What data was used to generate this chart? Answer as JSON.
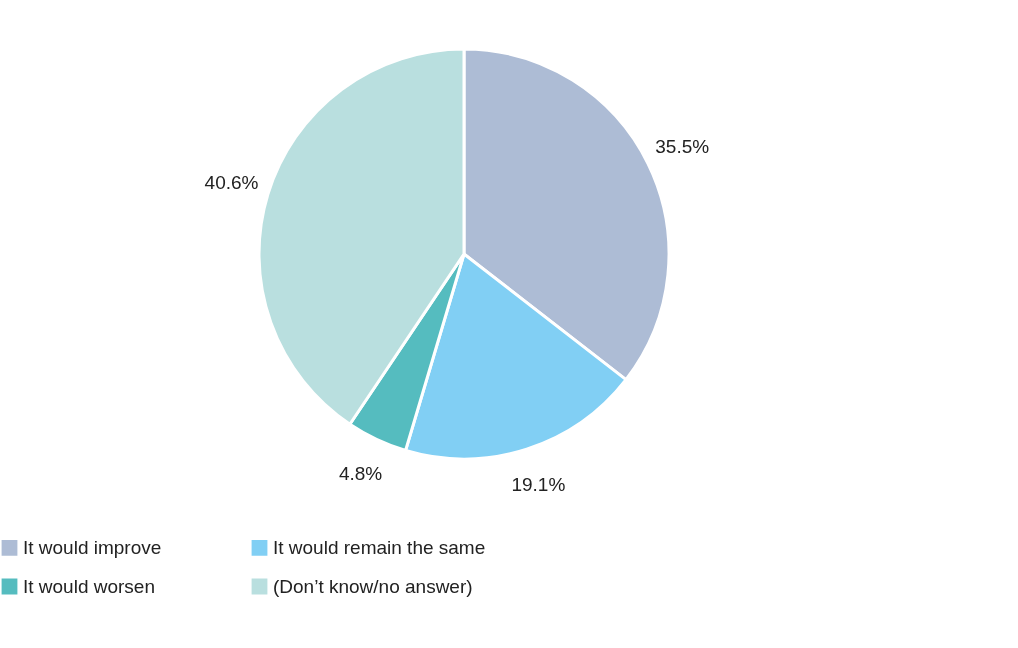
{
  "chart_data": {
    "type": "pie",
    "categories": [
      "It would improve",
      "It would remain the same",
      "It would worsen",
      "(Don’t know/no answer)"
    ],
    "values": [
      35.5,
      19.1,
      4.8,
      40.6
    ],
    "value_labels": [
      "35.5%",
      "19.1%",
      "4.8%",
      "40.6%"
    ],
    "colors": [
      "#adbcd5",
      "#81cff4",
      "#55bcbf",
      "#b9dfdf"
    ],
    "legend": "bottom"
  }
}
